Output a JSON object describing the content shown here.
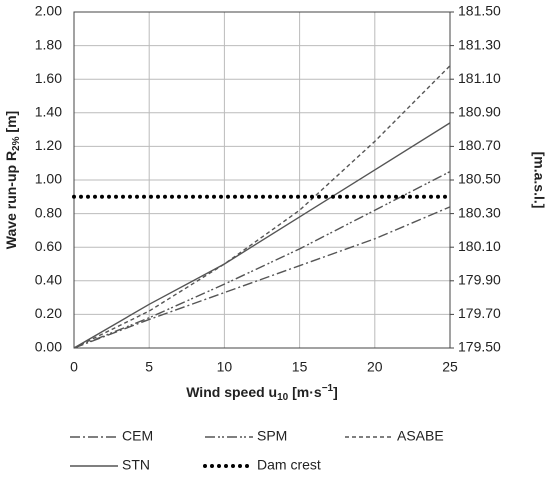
{
  "chart_data": {
    "type": "line",
    "x": [
      0,
      5,
      10,
      15,
      20,
      25
    ],
    "series": [
      {
        "name": "CEM",
        "color": "#555555",
        "dash": "10 3 2 3",
        "values": [
          0,
          0.17,
          0.33,
          0.49,
          0.65,
          0.84
        ]
      },
      {
        "name": "SPM",
        "color": "#555555",
        "dash": "10 3 2 2 2 3",
        "values": [
          0,
          0.18,
          0.38,
          0.59,
          0.82,
          1.05
        ]
      },
      {
        "name": "ASABE",
        "color": "#555555",
        "dash": "4 3",
        "values": [
          0,
          0.22,
          0.5,
          0.82,
          1.23,
          1.68
        ]
      },
      {
        "name": "STN",
        "color": "#555555",
        "dash": "none",
        "values": [
          0,
          0.26,
          0.5,
          0.78,
          1.06,
          1.34
        ]
      },
      {
        "name": "Dam crest",
        "color": "#000000",
        "dash": "dots",
        "values": [
          0.9,
          0.9,
          0.9,
          0.9,
          0.9,
          0.9
        ]
      }
    ],
    "xlabel": [
      "Wind speed u",
      "10",
      " [m·s",
      "−1",
      "]"
    ],
    "ylabel": [
      "Wave run-up R",
      "2%",
      " [m]"
    ],
    "y2label": "[m.a.s.l.]",
    "xlim": [
      0,
      25
    ],
    "xticks": [
      0,
      5,
      10,
      15,
      20,
      25
    ],
    "ylim": [
      0,
      2
    ],
    "yticks": [
      {
        "value": 0,
        "label": "0.00"
      },
      {
        "value": 0.2,
        "label": "0.20"
      },
      {
        "value": 0.4,
        "label": "0.40"
      },
      {
        "value": 0.6,
        "label": "0.60"
      },
      {
        "value": 0.8,
        "label": "0.80"
      },
      {
        "value": 1,
        "label": "1.00"
      },
      {
        "value": 1.2,
        "label": "1.20"
      },
      {
        "value": 1.4,
        "label": "1.40"
      },
      {
        "value": 1.6,
        "label": "1.60"
      },
      {
        "value": 1.8,
        "label": "1.80"
      },
      {
        "value": 2,
        "label": "2.00"
      }
    ],
    "y2lim": [
      179.5,
      181.5
    ],
    "y2ticks": [
      {
        "value": 179.5,
        "label": "179.50"
      },
      {
        "value": 179.7,
        "label": "179.70"
      },
      {
        "value": 179.9,
        "label": "179.90"
      },
      {
        "value": 180.1,
        "label": "180.10"
      },
      {
        "value": 180.3,
        "label": "180.30"
      },
      {
        "value": 180.5,
        "label": "180.50"
      },
      {
        "value": 180.7,
        "label": "180.70"
      },
      {
        "value": 180.9,
        "label": "180.90"
      },
      {
        "value": 181.1,
        "label": "181.10"
      },
      {
        "value": 181.3,
        "label": "181.30"
      },
      {
        "value": 181.5,
        "label": "181.50"
      }
    ],
    "grid": true
  }
}
